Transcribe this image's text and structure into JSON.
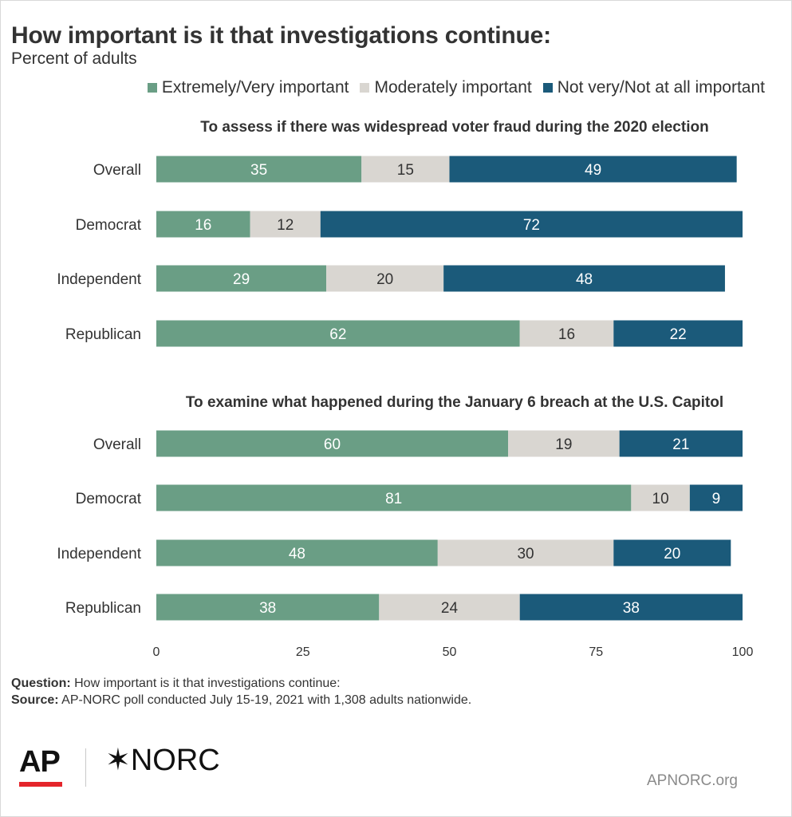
{
  "title": "How important is it that investigations continue:",
  "subtitle": "Percent of adults",
  "legend": [
    {
      "label": "Extremely/Very important",
      "color": "#6a9e85"
    },
    {
      "label": "Moderately important",
      "color": "#d9d6d1"
    },
    {
      "label": "Not very/Not at all important",
      "color": "#1b5a7a"
    }
  ],
  "notes": {
    "question_label": "Question:",
    "question_text": "How important is it that investigations continue:",
    "source_label": "Source:",
    "source_text": "AP-NORC poll conducted July 15-19, 2021 with 1,308 adults nationwide."
  },
  "branding": {
    "ap": "AP",
    "norc_star": "✶",
    "norc": "NORC",
    "site": "APNORC.org"
  },
  "chart_data": {
    "type": "bar",
    "orientation": "horizontal",
    "stacked": true,
    "xlim": [
      0,
      100
    ],
    "xticks": [
      "0",
      "25",
      "50",
      "75",
      "100"
    ],
    "label_colors": [
      "#ffffff",
      "#333333",
      "#ffffff"
    ],
    "panels": [
      {
        "title": "To assess if there was widespread voter fraud during the 2020 election",
        "categories": [
          "Overall",
          "Democrat",
          "Independent",
          "Republican"
        ],
        "series": [
          {
            "name": "Extremely/Very important",
            "values": [
              35,
              16,
              29,
              62
            ]
          },
          {
            "name": "Moderately important",
            "values": [
              15,
              12,
              20,
              16
            ]
          },
          {
            "name": "Not very/Not at all important",
            "values": [
              49,
              72,
              48,
              22
            ]
          }
        ]
      },
      {
        "title": "To examine what happened during the January 6 breach at the U.S. Capitol",
        "categories": [
          "Overall",
          "Democrat",
          "Independent",
          "Republican"
        ],
        "series": [
          {
            "name": "Extremely/Very important",
            "values": [
              60,
              81,
              48,
              38
            ]
          },
          {
            "name": "Moderately important",
            "values": [
              19,
              10,
              30,
              24
            ]
          },
          {
            "name": "Not very/Not at all important",
            "values": [
              21,
              9,
              20,
              38
            ]
          }
        ]
      }
    ]
  }
}
